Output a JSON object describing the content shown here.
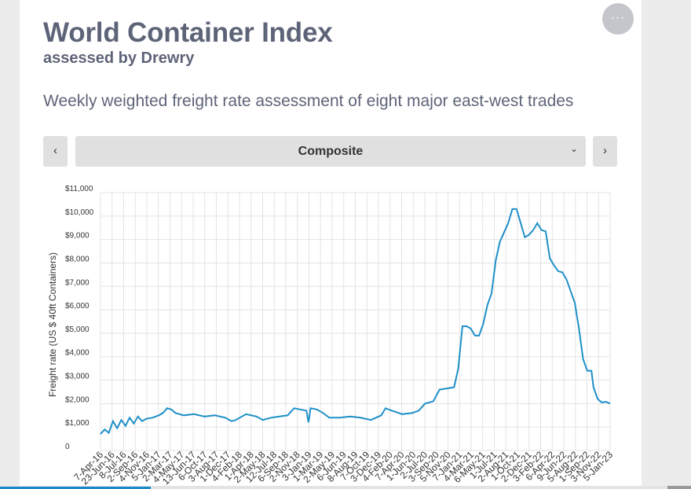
{
  "header": {
    "title": "World Container Index",
    "subtitle": "assessed by Drewry",
    "description": "Weekly weighted freight rate assessment of eight major east-west trades"
  },
  "controls": {
    "menu_glyph": "···",
    "prev_glyph": "‹",
    "next_glyph": "›",
    "selected_route": "Composite",
    "dropdown_glyph": "⌄"
  },
  "icons": {
    "menu": "more-horizontal-icon",
    "prev": "chevron-left-icon",
    "next": "chevron-right-icon",
    "dropdown": "chevron-down-icon"
  },
  "colors": {
    "line": "#1e90c8",
    "title": "#5e6478",
    "grid": "#e3e3e3"
  },
  "chart_data": {
    "type": "line",
    "ylabel": "Freight rate (US $ 40ft Containers)",
    "ylim": [
      0,
      11000
    ],
    "ytick_labels": [
      "0",
      "$1,000",
      "$2,000",
      "$3,000",
      "$4,000",
      "$5,000",
      "$6,000",
      "$7,000",
      "$8,000",
      "$9,000",
      "$10,000",
      "$11,000"
    ],
    "xtick_labels": [
      "7-Apr-16",
      "23-Jun-16",
      "8-Jul-16",
      "2-Sep-16",
      "4-Nov-16",
      "5-Jan-17",
      "2-Mar-17",
      "4-May-17",
      "13-Jun-17",
      "6-Oct-17",
      "3-Aug-17",
      "1-Dec-17",
      "4-Feb-18",
      "1-Apr-18",
      "2-May-18",
      "12-Jul-18",
      "6-Sep-18",
      "2-Nov-18",
      "3-Jan-19",
      "1-Mar-19",
      "2-May-19",
      "6-Jun-19",
      "8-Aug-19",
      "7-Oct-19",
      "3-Dec-19",
      "4-Feb-20",
      "7-Apr-20",
      "1-Jun-20",
      "2-Jul-20",
      "3-Sep-20",
      "5-Nov-20",
      "7-Jan-21",
      "4-Mar-21",
      "6-May-21",
      "1-Jul-21",
      "2-Aug-21",
      "1-Oct-21",
      "2-Dec-21",
      "3-Feb-22",
      "6-Apr-22",
      "9-Jun-22",
      "5-Aug-22",
      "1-Sep-22",
      "3-Nov-22",
      "5-Jan-23"
    ],
    "grid": true,
    "series": [
      {
        "points": [
          [
            0,
            700
          ],
          [
            2,
            900
          ],
          [
            4,
            750
          ],
          [
            6,
            1250
          ],
          [
            8,
            950
          ],
          [
            10,
            1300
          ],
          [
            12,
            1050
          ],
          [
            14,
            1400
          ],
          [
            16,
            1150
          ],
          [
            18,
            1450
          ],
          [
            20,
            1250
          ],
          [
            22,
            1350
          ],
          [
            25,
            1400
          ],
          [
            28,
            1500
          ],
          [
            30,
            1600
          ],
          [
            32,
            1800
          ],
          [
            34,
            1750
          ],
          [
            36,
            1600
          ],
          [
            40,
            1500
          ],
          [
            45,
            1550
          ],
          [
            50,
            1450
          ],
          [
            55,
            1500
          ],
          [
            60,
            1400
          ],
          [
            63,
            1250
          ],
          [
            65,
            1300
          ],
          [
            70,
            1550
          ],
          [
            75,
            1450
          ],
          [
            78,
            1300
          ],
          [
            82,
            1400
          ],
          [
            86,
            1450
          ],
          [
            90,
            1500
          ],
          [
            93,
            1800
          ],
          [
            96,
            1750
          ],
          [
            99,
            1700
          ],
          [
            100,
            1200
          ],
          [
            101,
            1800
          ],
          [
            104,
            1750
          ],
          [
            107,
            1600
          ],
          [
            110,
            1400
          ],
          [
            115,
            1400
          ],
          [
            120,
            1450
          ],
          [
            125,
            1400
          ],
          [
            130,
            1300
          ],
          [
            135,
            1500
          ],
          [
            137,
            1800
          ],
          [
            140,
            1700
          ],
          [
            145,
            1550
          ],
          [
            150,
            1600
          ],
          [
            153,
            1700
          ],
          [
            156,
            2000
          ],
          [
            160,
            2100
          ],
          [
            163,
            2600
          ],
          [
            167,
            2650
          ],
          [
            170,
            2700
          ],
          [
            172,
            3500
          ],
          [
            174,
            5300
          ],
          [
            176,
            5300
          ],
          [
            178,
            5200
          ],
          [
            180,
            4900
          ],
          [
            182,
            4900
          ],
          [
            184,
            5400
          ],
          [
            186,
            6200
          ],
          [
            188,
            6700
          ],
          [
            190,
            8100
          ],
          [
            192,
            8900
          ],
          [
            194,
            9300
          ],
          [
            196,
            9700
          ],
          [
            198,
            10300
          ],
          [
            200,
            10300
          ],
          [
            202,
            9700
          ],
          [
            204,
            9100
          ],
          [
            206,
            9200
          ],
          [
            208,
            9400
          ],
          [
            210,
            9700
          ],
          [
            212,
            9400
          ],
          [
            214,
            9350
          ],
          [
            216,
            8200
          ],
          [
            218,
            7900
          ],
          [
            220,
            7650
          ],
          [
            222,
            7600
          ],
          [
            224,
            7300
          ],
          [
            226,
            6800
          ],
          [
            228,
            6300
          ],
          [
            230,
            5200
          ],
          [
            232,
            3900
          ],
          [
            234,
            3400
          ],
          [
            236,
            3400
          ],
          [
            237,
            2700
          ],
          [
            239,
            2200
          ],
          [
            241,
            2050
          ],
          [
            243,
            2080
          ],
          [
            245,
            2000
          ]
        ]
      }
    ]
  }
}
